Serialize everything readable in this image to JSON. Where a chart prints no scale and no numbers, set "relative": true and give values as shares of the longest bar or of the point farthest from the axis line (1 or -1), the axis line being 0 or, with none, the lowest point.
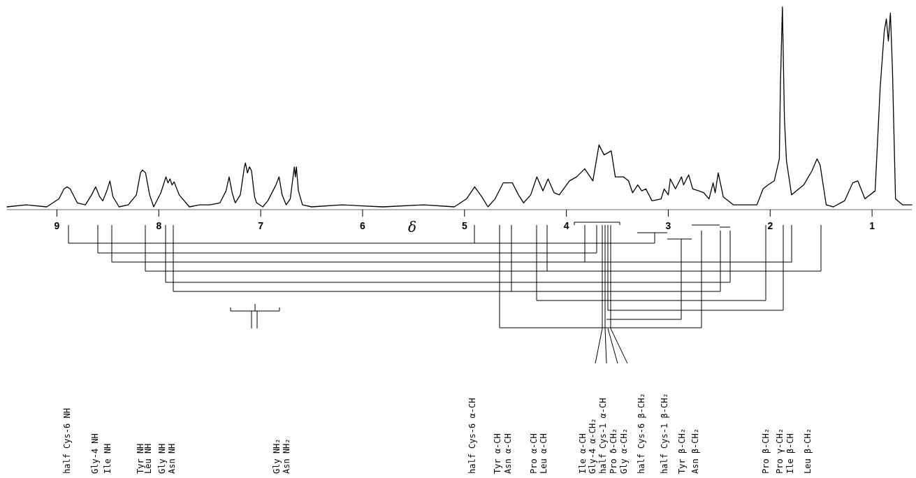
{
  "chart_data": {
    "type": "line",
    "xlabel": "δ",
    "relative": true,
    "tick_labels": "x",
    "line_style": "solid",
    "xlim": [
      9.49,
      0.61
    ],
    "xticks": [
      9,
      8,
      7,
      6,
      5,
      4,
      3,
      2,
      1
    ],
    "series": [
      {
        "color": "#000000",
        "x": [
          9.49,
          9.3,
          9.1,
          8.98,
          8.93,
          8.9,
          8.87,
          8.8,
          8.72,
          8.66,
          8.62,
          8.58,
          8.55,
          8.51,
          8.48,
          8.45,
          8.39,
          8.3,
          8.22,
          8.18,
          8.16,
          8.13,
          8.09,
          8.05,
          7.98,
          7.93,
          7.91,
          7.89,
          7.87,
          7.85,
          7.8,
          7.7,
          7.6,
          7.5,
          7.4,
          7.34,
          7.31,
          7.28,
          7.25,
          7.2,
          7.16,
          7.15,
          7.13,
          7.11,
          7.09,
          7.06,
          7.04,
          6.98,
          6.93,
          6.88,
          6.85,
          6.82,
          6.79,
          6.75,
          6.71,
          6.67,
          6.66,
          6.65,
          6.63,
          6.59,
          6.5,
          6.2,
          5.8,
          5.4,
          5.1,
          4.98,
          4.9,
          4.83,
          4.77,
          4.7,
          4.62,
          4.53,
          4.47,
          4.42,
          4.35,
          4.29,
          4.23,
          4.18,
          4.12,
          4.07,
          3.97,
          3.9,
          3.82,
          3.74,
          3.68,
          3.63,
          3.56,
          3.52,
          3.44,
          3.39,
          3.35,
          3.3,
          3.26,
          3.22,
          3.16,
          3.07,
          3.04,
          3.0,
          2.98,
          2.93,
          2.87,
          2.85,
          2.8,
          2.76,
          2.7,
          2.65,
          2.6,
          2.56,
          2.54,
          2.51,
          2.46,
          2.36,
          2.24,
          2.13,
          2.07,
          2.02,
          1.96,
          1.91,
          1.9,
          1.88,
          1.86,
          1.84,
          1.79,
          1.67,
          1.59,
          1.54,
          1.51,
          1.45,
          1.38,
          1.27,
          1.19,
          1.14,
          1.07,
          0.97,
          0.92,
          0.88,
          0.86,
          0.84,
          0.82,
          0.8,
          0.77,
          0.7,
          0.61
        ],
        "values": [
          0,
          0.01,
          0,
          0.04,
          0.09,
          0.1,
          0.09,
          0.02,
          0.01,
          0.06,
          0.1,
          0.05,
          0.03,
          0.08,
          0.13,
          0.05,
          0,
          0.01,
          0.06,
          0.17,
          0.185,
          0.17,
          0.06,
          0,
          0.07,
          0.15,
          0.12,
          0.14,
          0.11,
          0.125,
          0.06,
          0,
          0.01,
          0.01,
          0.02,
          0.08,
          0.15,
          0.07,
          0.02,
          0.06,
          0.2,
          0.22,
          0.17,
          0.2,
          0.18,
          0.05,
          0.02,
          0,
          0.03,
          0.08,
          0.11,
          0.15,
          0.06,
          0.01,
          0.04,
          0.2,
          0.15,
          0.2,
          0.08,
          0.01,
          0,
          0.01,
          0,
          0.01,
          0,
          0.04,
          0.1,
          0.05,
          0,
          0.04,
          0.12,
          0.12,
          0.06,
          0.02,
          0.06,
          0.15,
          0.08,
          0.14,
          0.07,
          0.06,
          0.13,
          0.15,
          0.19,
          0.13,
          0.31,
          0.26,
          0.28,
          0.15,
          0.15,
          0.13,
          0.07,
          0.11,
          0.08,
          0.09,
          0.03,
          0.04,
          0.09,
          0.06,
          0.14,
          0.09,
          0.15,
          0.11,
          0.16,
          0.09,
          0.08,
          0.07,
          0.04,
          0.12,
          0.07,
          0.17,
          0.05,
          0.01,
          0.01,
          0.01,
          0.09,
          0.11,
          0.13,
          0.24,
          0.6,
          1,
          0.44,
          0.23,
          0.06,
          0.11,
          0.18,
          0.24,
          0.21,
          0.01,
          0,
          0.03,
          0.12,
          0.13,
          0.04,
          0.08,
          0.6,
          0.88,
          0.94,
          0.83,
          0.97,
          0.69,
          0.04,
          0.01,
          0.01
        ]
      }
    ],
    "annotations": [
      "half Cys-6 NH",
      "Gly-4 NH",
      "Ile NH",
      "Tyr NH",
      "Leu NH",
      "Gly NH",
      "Asn NH",
      "Gly NH₂",
      "Asn NH₂",
      "half Cys-6 α-CH",
      "Tyr α-CH",
      "Asn α-CH",
      "Pro α-CH",
      "Leu α-CH",
      "Ile α-CH",
      "Gly-4 α-CH₂",
      "half Cys-1 α-CH",
      "Pro δ-CH₂",
      "Gly α-CH₂",
      "half Cys-6 β-CH₂",
      "half Cys-1 β-CH₂",
      "Tyr β-CH₂",
      "Asn β-CH₂",
      "Pro β-CH₂",
      "Pro γ-CH₂",
      "Ile β-CH",
      "Leu β-CH₂"
    ]
  }
}
